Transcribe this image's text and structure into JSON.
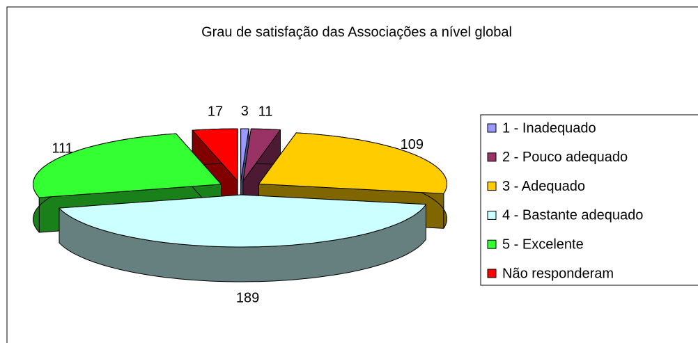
{
  "chart_data": {
    "type": "pie",
    "subtype": "3d-exploded",
    "title": "Grau de satisfação das Associações a nível global",
    "categories": [
      "1 - Inadequado",
      "2 - Pouco adequado",
      "3 - Adequado",
      "4 - Bastante adequado",
      "5 - Excelente",
      "Não responderam"
    ],
    "values": [
      3,
      11,
      109,
      189,
      111,
      17
    ],
    "colors": [
      "#9999ff",
      "#993366",
      "#ffcc00",
      "#ccffff",
      "#33ff33",
      "#ff0000"
    ],
    "legend": "right"
  }
}
